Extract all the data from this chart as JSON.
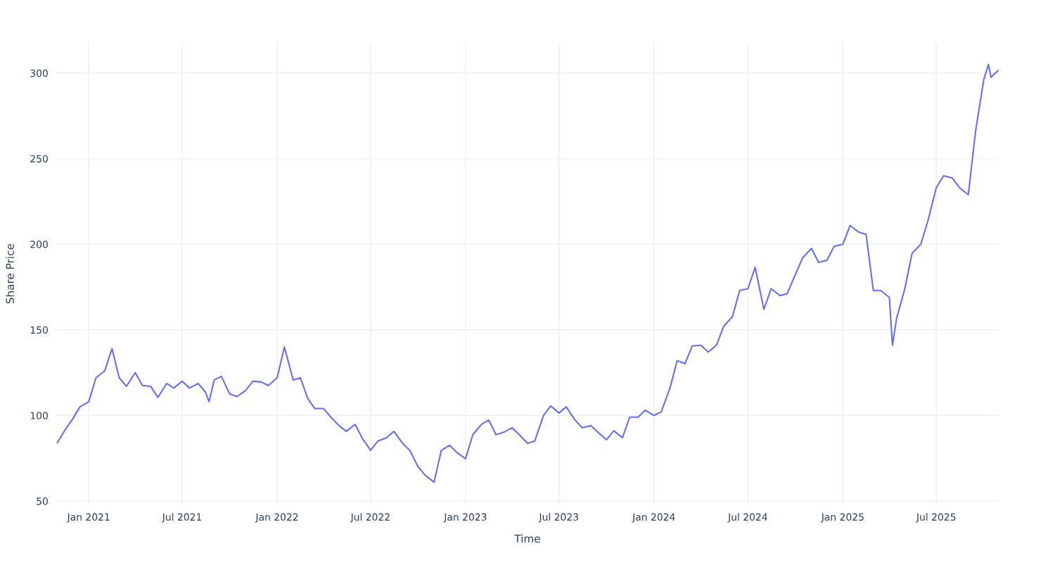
{
  "chart_data": {
    "type": "line",
    "xlabel": "Time",
    "ylabel": "Share Price",
    "x": [
      "2020-11-01",
      "2020-11-15",
      "2020-12-01",
      "2020-12-15",
      "2021-01-01",
      "2021-01-15",
      "2021-02-01",
      "2021-02-15",
      "2021-03-01",
      "2021-03-15",
      "2021-04-01",
      "2021-04-15",
      "2021-05-01",
      "2021-05-15",
      "2021-06-01",
      "2021-06-15",
      "2021-07-01",
      "2021-07-15",
      "2021-08-01",
      "2021-08-15",
      "2021-08-22",
      "2021-09-01",
      "2021-09-15",
      "2021-10-01",
      "2021-10-15",
      "2021-11-01",
      "2021-11-15",
      "2021-12-01",
      "2021-12-15",
      "2022-01-01",
      "2022-01-15",
      "2022-02-01",
      "2022-02-15",
      "2022-03-01",
      "2022-03-15",
      "2022-04-01",
      "2022-04-15",
      "2022-05-01",
      "2022-05-15",
      "2022-06-01",
      "2022-06-15",
      "2022-07-01",
      "2022-07-15",
      "2022-08-01",
      "2022-08-15",
      "2022-09-01",
      "2022-09-15",
      "2022-10-01",
      "2022-10-15",
      "2022-11-01",
      "2022-11-15",
      "2022-12-01",
      "2022-12-15",
      "2023-01-01",
      "2023-01-15",
      "2023-02-01",
      "2023-02-15",
      "2023-03-01",
      "2023-03-15",
      "2023-04-01",
      "2023-04-15",
      "2023-05-01",
      "2023-05-15",
      "2023-06-01",
      "2023-06-15",
      "2023-07-01",
      "2023-07-15",
      "2023-08-01",
      "2023-08-15",
      "2023-09-01",
      "2023-09-15",
      "2023-10-01",
      "2023-10-15",
      "2023-11-01",
      "2023-11-15",
      "2023-12-01",
      "2023-12-15",
      "2024-01-01",
      "2024-01-15",
      "2024-02-01",
      "2024-02-15",
      "2024-03-01",
      "2024-03-15",
      "2024-04-01",
      "2024-04-15",
      "2024-05-01",
      "2024-05-15",
      "2024-06-01",
      "2024-06-15",
      "2024-07-01",
      "2024-07-15",
      "2024-08-01",
      "2024-08-15",
      "2024-09-01",
      "2024-09-15",
      "2024-10-01",
      "2024-10-15",
      "2024-11-01",
      "2024-11-15",
      "2024-12-01",
      "2024-12-15",
      "2025-01-01",
      "2025-01-15",
      "2025-02-01",
      "2025-02-15",
      "2025-03-01",
      "2025-03-15",
      "2025-04-01",
      "2025-04-07",
      "2025-04-15",
      "2025-05-01",
      "2025-05-15",
      "2025-06-01",
      "2025-06-15",
      "2025-07-01",
      "2025-07-15",
      "2025-08-01",
      "2025-08-15",
      "2025-09-01",
      "2025-09-15",
      "2025-10-01",
      "2025-10-10",
      "2025-10-15",
      "2025-10-29"
    ],
    "series": [
      {
        "color": "#636efa",
        "values": [
          84,
          91,
          98,
          105,
          108,
          122,
          126,
          139,
          122,
          117,
          125,
          117.5,
          117,
          110.5,
          118.7,
          116,
          120,
          116,
          118.7,
          113.7,
          108,
          120.7,
          122.8,
          112.5,
          111,
          114.6,
          120,
          119.5,
          117.5,
          122,
          140,
          120.7,
          122,
          110,
          104,
          104,
          99,
          94,
          90.7,
          94.8,
          86.6,
          79.6,
          85,
          87,
          90.7,
          83.7,
          79.6,
          70,
          65,
          61,
          79.6,
          82.5,
          78.4,
          74.7,
          88.7,
          94.8,
          97.3,
          88.7,
          90,
          92.8,
          88.7,
          83.7,
          85,
          100,
          105.5,
          101.4,
          105,
          97.3,
          92.8,
          94,
          90,
          85.8,
          91,
          87,
          99,
          99,
          103,
          100,
          102,
          116,
          132,
          130.2,
          140.5,
          141,
          137,
          141,
          152,
          157.7,
          173,
          174,
          186.5,
          162,
          174,
          170,
          171,
          182.4,
          192,
          197.6,
          189.4,
          190.6,
          198.8,
          200,
          211,
          207,
          205.8,
          173,
          173,
          169,
          141,
          156.5,
          174,
          194.7,
          200,
          214,
          233,
          240,
          238.7,
          233,
          228.9,
          265.9,
          296.3,
          305,
          297.5,
          301.6
        ]
      }
    ],
    "xlim": [
      "2020-10-30",
      "2025-10-30"
    ],
    "xticks": [
      {
        "value": "2021-01-01",
        "label": "Jan 2021"
      },
      {
        "value": "2021-07-01",
        "label": "Jul 2021"
      },
      {
        "value": "2022-01-01",
        "label": "Jan 2022"
      },
      {
        "value": "2022-07-01",
        "label": "Jul 2022"
      },
      {
        "value": "2023-01-01",
        "label": "Jan 2023"
      },
      {
        "value": "2023-07-01",
        "label": "Jul 2023"
      },
      {
        "value": "2024-01-01",
        "label": "Jan 2024"
      },
      {
        "value": "2024-07-01",
        "label": "Jul 2024"
      },
      {
        "value": "2025-01-01",
        "label": "Jan 2025"
      },
      {
        "value": "2025-07-01",
        "label": "Jul 2025"
      }
    ],
    "ylim": [
      47.5,
      318
    ],
    "yticks": [
      50,
      100,
      150,
      200,
      250,
      300
    ],
    "grid": true
  }
}
